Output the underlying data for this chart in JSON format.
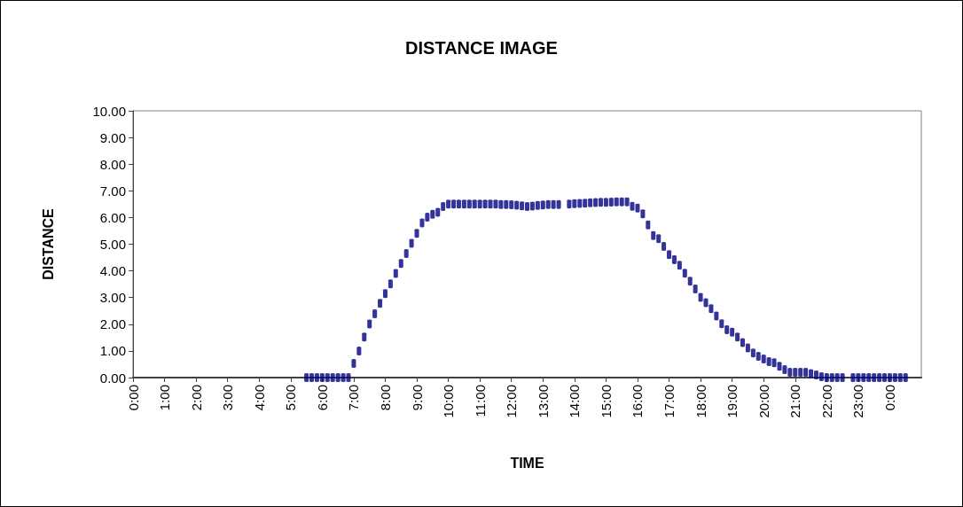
{
  "chart_data": {
    "type": "scatter",
    "title": "DISTANCE IMAGE",
    "xlabel": "TIME",
    "ylabel": "DISTANCE",
    "series": [
      {
        "color": "#000080",
        "x": [
          5.5,
          5.667,
          5.833,
          6,
          6.167,
          6.333,
          6.5,
          6.667,
          6.833,
          7,
          7.167,
          7.333,
          7.5,
          7.667,
          7.833,
          8,
          8.167,
          8.333,
          8.5,
          8.667,
          8.833,
          9,
          9.167,
          9.333,
          9.5,
          9.667,
          9.833,
          10,
          10.167,
          10.333,
          10.5,
          10.667,
          10.833,
          11,
          11.167,
          11.333,
          11.5,
          11.667,
          11.833,
          12,
          12.167,
          12.333,
          12.5,
          12.667,
          12.833,
          13,
          13.167,
          13.333,
          13.5,
          13.833,
          14,
          14.167,
          14.333,
          14.5,
          14.667,
          14.833,
          15,
          15.167,
          15.333,
          15.5,
          15.667,
          15.833,
          16,
          16.167,
          16.333,
          16.5,
          16.667,
          16.833,
          17,
          17.167,
          17.333,
          17.5,
          17.667,
          17.833,
          18,
          18.167,
          18.333,
          18.5,
          18.667,
          18.833,
          19,
          19.167,
          19.333,
          19.5,
          19.667,
          19.833,
          20,
          20.167,
          20.333,
          20.5,
          20.667,
          20.833,
          21,
          21.167,
          21.333,
          21.5,
          21.667,
          21.833,
          22,
          22.167,
          22.333,
          22.5,
          22.833,
          23,
          23.167,
          23.333,
          23.5,
          23.667,
          23.833,
          24,
          24.167,
          24.333,
          24.5
        ],
        "values": [
          0,
          0,
          0,
          0,
          0,
          0,
          0,
          0,
          0,
          0.53,
          1.0,
          1.52,
          2.01,
          2.39,
          2.78,
          3.15,
          3.51,
          3.9,
          4.28,
          4.65,
          5.03,
          5.41,
          5.8,
          6.01,
          6.12,
          6.2,
          6.41,
          6.5,
          6.5,
          6.5,
          6.5,
          6.5,
          6.5,
          6.5,
          6.5,
          6.5,
          6.5,
          6.49,
          6.49,
          6.48,
          6.46,
          6.44,
          6.41,
          6.43,
          6.45,
          6.47,
          6.49,
          6.49,
          6.49,
          6.5,
          6.52,
          6.53,
          6.54,
          6.55,
          6.56,
          6.57,
          6.57,
          6.58,
          6.59,
          6.59,
          6.59,
          6.42,
          6.35,
          6.14,
          5.72,
          5.32,
          5.21,
          4.92,
          4.61,
          4.42,
          4.21,
          3.91,
          3.61,
          3.32,
          3.01,
          2.81,
          2.58,
          2.31,
          2.02,
          1.79,
          1.7,
          1.52,
          1.31,
          1.11,
          0.92,
          0.8,
          0.7,
          0.6,
          0.56,
          0.42,
          0.3,
          0.2,
          0.2,
          0.2,
          0.2,
          0.15,
          0.1,
          0.03,
          0,
          0,
          0,
          0,
          0,
          0,
          0,
          0,
          0,
          0,
          0,
          0,
          0,
          0,
          0
        ]
      }
    ],
    "xlim": [
      0,
      25
    ],
    "xticks": [
      {
        "value": 0,
        "label": "0:00"
      },
      {
        "value": 1,
        "label": "1:00"
      },
      {
        "value": 2,
        "label": "2:00"
      },
      {
        "value": 3,
        "label": "3:00"
      },
      {
        "value": 4,
        "label": "4:00"
      },
      {
        "value": 5,
        "label": "5:00"
      },
      {
        "value": 6,
        "label": "6:00"
      },
      {
        "value": 7,
        "label": "7:00"
      },
      {
        "value": 8,
        "label": "8:00"
      },
      {
        "value": 9,
        "label": "9:00"
      },
      {
        "value": 10,
        "label": "10:00"
      },
      {
        "value": 11,
        "label": "11:00"
      },
      {
        "value": 12,
        "label": "12:00"
      },
      {
        "value": 13,
        "label": "13:00"
      },
      {
        "value": 14,
        "label": "14:00"
      },
      {
        "value": 15,
        "label": "15:00"
      },
      {
        "value": 16,
        "label": "16:00"
      },
      {
        "value": 17,
        "label": "17:00"
      },
      {
        "value": 18,
        "label": "18:00"
      },
      {
        "value": 19,
        "label": "19:00"
      },
      {
        "value": 20,
        "label": "20:00"
      },
      {
        "value": 21,
        "label": "21:00"
      },
      {
        "value": 22,
        "label": "22:00"
      },
      {
        "value": 23,
        "label": "23:00"
      },
      {
        "value": 24,
        "label": "0:00"
      }
    ],
    "ylim": [
      0,
      10
    ],
    "yticks": [
      {
        "value": 0,
        "label": "0.00"
      },
      {
        "value": 1,
        "label": "1.00"
      },
      {
        "value": 2,
        "label": "2.00"
      },
      {
        "value": 3,
        "label": "3.00"
      },
      {
        "value": 4,
        "label": "4.00"
      },
      {
        "value": 5,
        "label": "5.00"
      },
      {
        "value": 6,
        "label": "6.00"
      },
      {
        "value": 7,
        "label": "7.00"
      },
      {
        "value": 8,
        "label": "8.00"
      },
      {
        "value": 9,
        "label": "9.00"
      },
      {
        "value": 10,
        "label": "10.00"
      }
    ],
    "grid": false
  }
}
